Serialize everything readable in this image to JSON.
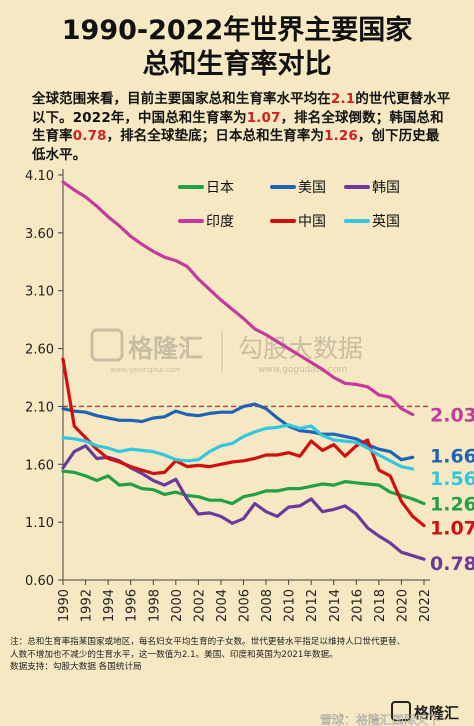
{
  "title_line1": "1990-2022年世界主要国家",
  "title_line2": "总和生育率对比",
  "intro": {
    "p1": "全球范围来看，目前主要国家总和生育率水平均在",
    "v1": "2.1",
    "p2": "的世代更替水平以下。2022年，中国总和生育率为",
    "v2": "1.07",
    "p3": "，排名全球倒数；韩国总和生育率",
    "v3": "0.78",
    "p4": "，排名全球垫底；日本总和生育率为",
    "v4": "1.26",
    "p5": "，创下历史最低水平。"
  },
  "watermark": {
    "logo1": "格隆汇",
    "url1": "www.gelonghui.com",
    "logo2": "勾股大数据",
    "url2": "www.gogudata.com"
  },
  "note": {
    "line1": "注：总和生育率指某国家或地区，每名妇女平均生育的子女数。世代更替水平指足以维持人口世代更替、",
    "line2": "人数不增加也不减少的生育水平，这一数值为2.1。美国、印度和英国为2021年数据。",
    "line3": "数据支持：勾股大数据 各国统计局"
  },
  "footer": {
    "brand": "格隆汇",
    "social": "雪球：格隆汇国际天下"
  },
  "colors": {
    "japan": "#22a045",
    "usa": "#1e63b5",
    "korea": "#6a3a9c",
    "india": "#c43a9e",
    "china": "#d10f0f",
    "uk": "#33c6e0",
    "replacement": "#c0392b"
  },
  "chart_data": {
    "type": "line",
    "ylim": [
      0.6,
      4.1
    ],
    "yticks": [
      "4.10",
      "3.60",
      "3.10",
      "2.60",
      "2.10",
      "1.60",
      "1.10",
      "0.60"
    ],
    "xticks": [
      "1990",
      "1992",
      "1994",
      "1996",
      "1998",
      "2000",
      "2002",
      "2004",
      "2006",
      "2008",
      "2010",
      "2012",
      "2014",
      "2016",
      "2018",
      "2020",
      "2022"
    ],
    "reference_line": 2.1,
    "series": [
      {
        "name": "日本",
        "key": "japan",
        "end_label": "1.26",
        "x": [
          1990,
          1991,
          1992,
          1993,
          1994,
          1995,
          1996,
          1997,
          1998,
          1999,
          2000,
          2001,
          2002,
          2003,
          2004,
          2005,
          2006,
          2007,
          2008,
          2009,
          2010,
          2011,
          2012,
          2013,
          2014,
          2015,
          2016,
          2017,
          2018,
          2019,
          2020,
          2021,
          2022
        ],
        "y": [
          1.54,
          1.53,
          1.5,
          1.46,
          1.5,
          1.42,
          1.43,
          1.39,
          1.38,
          1.34,
          1.36,
          1.33,
          1.32,
          1.29,
          1.29,
          1.26,
          1.32,
          1.34,
          1.37,
          1.37,
          1.39,
          1.39,
          1.41,
          1.43,
          1.42,
          1.45,
          1.44,
          1.43,
          1.42,
          1.36,
          1.33,
          1.3,
          1.26
        ]
      },
      {
        "name": "美国",
        "key": "usa",
        "end_label": "1.66",
        "x": [
          1990,
          1991,
          1992,
          1993,
          1994,
          1995,
          1996,
          1997,
          1998,
          1999,
          2000,
          2001,
          2002,
          2003,
          2004,
          2005,
          2006,
          2007,
          2008,
          2009,
          2010,
          2011,
          2012,
          2013,
          2014,
          2015,
          2016,
          2017,
          2018,
          2019,
          2020,
          2021
        ],
        "y": [
          2.08,
          2.06,
          2.05,
          2.02,
          2.0,
          1.98,
          1.98,
          1.97,
          2.0,
          2.01,
          2.06,
          2.03,
          2.02,
          2.04,
          2.05,
          2.05,
          2.1,
          2.12,
          2.08,
          2.0,
          1.93,
          1.89,
          1.88,
          1.86,
          1.86,
          1.84,
          1.82,
          1.77,
          1.73,
          1.71,
          1.64,
          1.66
        ]
      },
      {
        "name": "韩国",
        "key": "korea",
        "end_label": "0.78",
        "x": [
          1990,
          1991,
          1992,
          1993,
          1994,
          1995,
          1996,
          1997,
          1998,
          1999,
          2000,
          2001,
          2002,
          2003,
          2004,
          2005,
          2006,
          2007,
          2008,
          2009,
          2010,
          2011,
          2012,
          2013,
          2014,
          2015,
          2016,
          2017,
          2018,
          2019,
          2020,
          2021,
          2022
        ],
        "y": [
          1.57,
          1.71,
          1.76,
          1.65,
          1.66,
          1.63,
          1.57,
          1.52,
          1.46,
          1.42,
          1.47,
          1.3,
          1.17,
          1.18,
          1.15,
          1.09,
          1.13,
          1.26,
          1.19,
          1.15,
          1.23,
          1.24,
          1.3,
          1.19,
          1.21,
          1.24,
          1.17,
          1.05,
          0.98,
          0.92,
          0.84,
          0.81,
          0.78
        ]
      },
      {
        "name": "印度",
        "key": "india",
        "end_label": "2.03",
        "x": [
          1990,
          1991,
          1992,
          1993,
          1994,
          1995,
          1996,
          1997,
          1998,
          1999,
          2000,
          2001,
          2002,
          2003,
          2004,
          2005,
          2006,
          2007,
          2008,
          2009,
          2010,
          2011,
          2012,
          2013,
          2014,
          2015,
          2016,
          2017,
          2018,
          2019,
          2020,
          2021
        ],
        "y": [
          4.04,
          3.97,
          3.91,
          3.83,
          3.74,
          3.66,
          3.57,
          3.5,
          3.44,
          3.39,
          3.36,
          3.31,
          3.2,
          3.11,
          3.02,
          2.94,
          2.86,
          2.77,
          2.72,
          2.66,
          2.6,
          2.54,
          2.48,
          2.42,
          2.35,
          2.3,
          2.29,
          2.27,
          2.2,
          2.18,
          2.08,
          2.03
        ]
      },
      {
        "name": "中国",
        "key": "china",
        "end_label": "1.07",
        "x": [
          1990,
          1991,
          1992,
          1993,
          1994,
          1995,
          1996,
          1997,
          1998,
          1999,
          2000,
          2001,
          2002,
          2003,
          2004,
          2005,
          2006,
          2007,
          2008,
          2009,
          2010,
          2011,
          2012,
          2013,
          2014,
          2015,
          2016,
          2017,
          2018,
          2019,
          2020,
          2021,
          2022
        ],
        "y": [
          2.51,
          1.93,
          1.83,
          1.73,
          1.65,
          1.62,
          1.58,
          1.55,
          1.52,
          1.53,
          1.63,
          1.58,
          1.59,
          1.58,
          1.6,
          1.62,
          1.63,
          1.65,
          1.68,
          1.68,
          1.7,
          1.67,
          1.8,
          1.72,
          1.77,
          1.67,
          1.76,
          1.81,
          1.55,
          1.5,
          1.28,
          1.15,
          1.07
        ]
      },
      {
        "name": "英国",
        "key": "uk",
        "end_label": "1.56",
        "x": [
          1990,
          1991,
          1992,
          1993,
          1994,
          1995,
          1996,
          1997,
          1998,
          1999,
          2000,
          2001,
          2002,
          2003,
          2004,
          2005,
          2006,
          2007,
          2008,
          2009,
          2010,
          2011,
          2012,
          2013,
          2014,
          2015,
          2016,
          2017,
          2018,
          2019,
          2020,
          2021
        ],
        "y": [
          1.83,
          1.82,
          1.8,
          1.76,
          1.74,
          1.71,
          1.73,
          1.72,
          1.71,
          1.68,
          1.64,
          1.63,
          1.64,
          1.71,
          1.76,
          1.78,
          1.84,
          1.88,
          1.91,
          1.92,
          1.94,
          1.91,
          1.93,
          1.85,
          1.81,
          1.8,
          1.79,
          1.74,
          1.68,
          1.63,
          1.58,
          1.56
        ]
      }
    ]
  }
}
